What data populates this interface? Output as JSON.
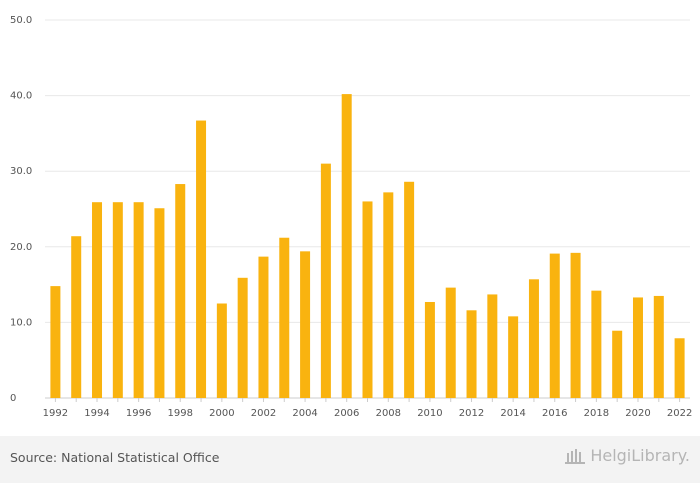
{
  "footer": {
    "source": "Source: National Statistical Office",
    "logo_text": "HelgiLibrary."
  },
  "chart_data": {
    "type": "bar",
    "title": "",
    "xlabel": "",
    "ylabel": "",
    "ylim": [
      0,
      50
    ],
    "yticks": [
      "0",
      "10.0",
      "20.0",
      "30.0",
      "40.0",
      "50.0"
    ],
    "ytick_values": [
      0,
      10,
      20,
      30,
      40,
      50
    ],
    "categories": [
      "1992",
      "1993",
      "1994",
      "1995",
      "1996",
      "1997",
      "1998",
      "1999",
      "2000",
      "2001",
      "2002",
      "2003",
      "2004",
      "2005",
      "2006",
      "2007",
      "2008",
      "2009",
      "2010",
      "2011",
      "2012",
      "2013",
      "2014",
      "2015",
      "2016",
      "2017",
      "2018",
      "2019",
      "2020",
      "2021",
      "2022"
    ],
    "xtick_labels": [
      "1992",
      "",
      "1994",
      "",
      "1996",
      "",
      "1998",
      "",
      "2000",
      "",
      "2002",
      "",
      "2004",
      "",
      "2006",
      "",
      "2008",
      "",
      "2010",
      "",
      "2012",
      "",
      "2014",
      "",
      "2016",
      "",
      "2018",
      "",
      "2020",
      "",
      "2022"
    ],
    "values": [
      14.8,
      21.4,
      25.9,
      25.9,
      25.9,
      25.1,
      28.3,
      36.7,
      12.5,
      15.9,
      18.7,
      21.2,
      19.4,
      31.0,
      40.2,
      26.0,
      27.2,
      28.6,
      12.7,
      14.6,
      11.6,
      13.7,
      10.8,
      15.7,
      19.1,
      19.2,
      14.2,
      8.9,
      13.3,
      13.5,
      7.9
    ],
    "color": "#F9B30F",
    "grid": true
  }
}
